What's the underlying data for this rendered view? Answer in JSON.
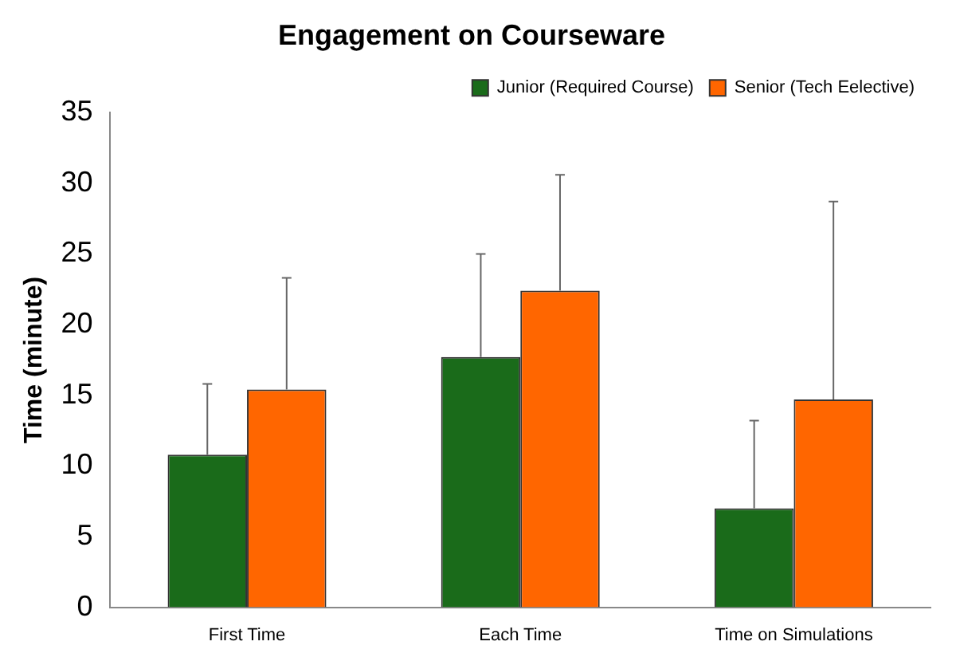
{
  "chart_data": {
    "type": "bar",
    "title": "Engagement on Courseware",
    "ylabel": "Time (minute)",
    "categories": [
      "First Time",
      "Each Time",
      "Time on Simulations"
    ],
    "series": [
      {
        "name": "Junior (Required Course)",
        "color": "#1a6b1a",
        "values": [
          10.8,
          17.7,
          7.0
        ],
        "errors": [
          [
            10.8,
            15.8
          ],
          [
            17.7,
            25.0
          ],
          [
            7.0,
            13.2
          ]
        ]
      },
      {
        "name": "Senior (Tech Eelective)",
        "color": "#ff6600",
        "values": [
          15.4,
          22.4,
          14.7
        ],
        "errors": [
          [
            15.4,
            23.3
          ],
          [
            22.4,
            30.6
          ],
          [
            14.7,
            28.7
          ]
        ]
      }
    ],
    "ylim": [
      0,
      35
    ],
    "yticks": [
      0,
      5,
      10,
      15,
      20,
      25,
      30,
      35
    ],
    "grid": false,
    "legend": "top right"
  }
}
